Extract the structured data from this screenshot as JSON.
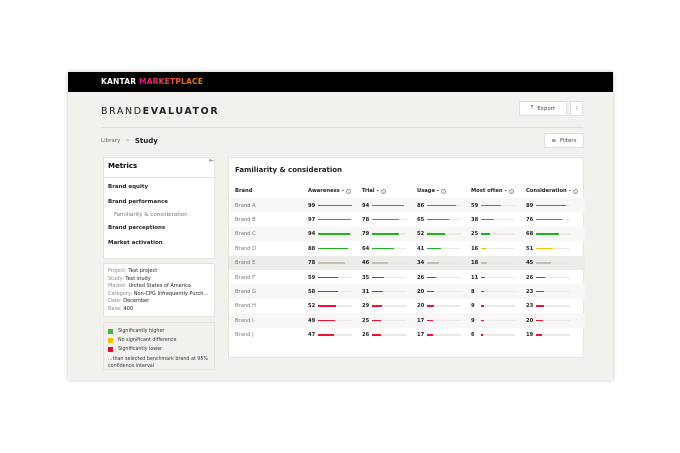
{
  "header": {
    "brand": "KANTAR",
    "product": "MARKETPLACE"
  },
  "app": {
    "title_light": "BRAND",
    "title_bold": "EVALUATOR",
    "export": "Export",
    "more": "⋮",
    "filters": "Filters"
  },
  "breadcrumb": {
    "root": "Library",
    "sep": ">",
    "current": "Study"
  },
  "sidebar": {
    "title": "Metrics",
    "items": [
      {
        "label": "Brand equity",
        "sub": false
      },
      {
        "label": "Brand performance",
        "sub": false
      },
      {
        "label": "Familiarity & consideration",
        "sub": true
      },
      {
        "label": "Brand perceptions",
        "sub": false
      },
      {
        "label": "Market activation",
        "sub": false
      }
    ],
    "info": [
      {
        "k": "Project:",
        "v": "Test project"
      },
      {
        "k": "Study:",
        "v": "Test study"
      },
      {
        "k": "Market:",
        "v": "United States of America"
      },
      {
        "k": "Category:",
        "v": "Non-CPG Infrequently Purch..."
      },
      {
        "k": "Date:",
        "v": "December"
      },
      {
        "k": "Base:",
        "v": "400"
      }
    ],
    "legend": [
      {
        "label": "Significantly higher",
        "color": "#3db83d"
      },
      {
        "label": "No significant difference",
        "color": "#f2c200"
      },
      {
        "label": "Significantly lower",
        "color": "#e0102a"
      }
    ],
    "legend_note": "...than selected benchmark brand at 95% confidence interval"
  },
  "table": {
    "title": "Familiarity & consideration",
    "brand_header": "Brand",
    "columns": [
      "Awareness",
      "Trial",
      "Usage",
      "Most often",
      "Consideration"
    ],
    "colors": {
      "g": "#1db31d",
      "y": "#f5c400",
      "n": "#c2bfb7",
      "r": "#ee1133"
    },
    "rows": [
      {
        "brand": "Brand A",
        "values": [
          99,
          94,
          86,
          59,
          89
        ],
        "sig": [
          "g",
          "g",
          "g",
          "g",
          "g"
        ]
      },
      {
        "brand": "Brand B",
        "values": [
          97,
          78,
          65,
          38,
          76
        ],
        "sig": [
          "g",
          "g",
          "g",
          "g",
          "g"
        ]
      },
      {
        "brand": "Brand C",
        "values": [
          94,
          79,
          52,
          25,
          68
        ],
        "sig": [
          "g",
          "g",
          "g",
          "g",
          "g"
        ]
      },
      {
        "brand": "Brand D",
        "values": [
          88,
          64,
          41,
          16,
          51
        ],
        "sig": [
          "g",
          "g",
          "g",
          "y",
          "y"
        ]
      },
      {
        "brand": "Brand E",
        "values": [
          78,
          46,
          34,
          18,
          45
        ],
        "sig": [
          "n",
          "n",
          "n",
          "n",
          "n"
        ],
        "benchmark": true
      },
      {
        "brand": "Brand F",
        "values": [
          59,
          35,
          26,
          11,
          26
        ],
        "sig": [
          "r",
          "r",
          "r",
          "r",
          "r"
        ]
      },
      {
        "brand": "Brand G",
        "values": [
          58,
          31,
          20,
          8,
          23
        ],
        "sig": [
          "r",
          "r",
          "r",
          "r",
          "r"
        ]
      },
      {
        "brand": "Brand H",
        "values": [
          52,
          29,
          20,
          9,
          23
        ],
        "sig": [
          "r",
          "r",
          "r",
          "r",
          "r"
        ]
      },
      {
        "brand": "Brand I",
        "values": [
          49,
          25,
          17,
          9,
          20
        ],
        "sig": [
          "r",
          "r",
          "r",
          "r",
          "r"
        ]
      },
      {
        "brand": "Brand J",
        "values": [
          47,
          26,
          17,
          6,
          19
        ],
        "sig": [
          "r",
          "r",
          "r",
          "r",
          "r"
        ]
      }
    ]
  }
}
